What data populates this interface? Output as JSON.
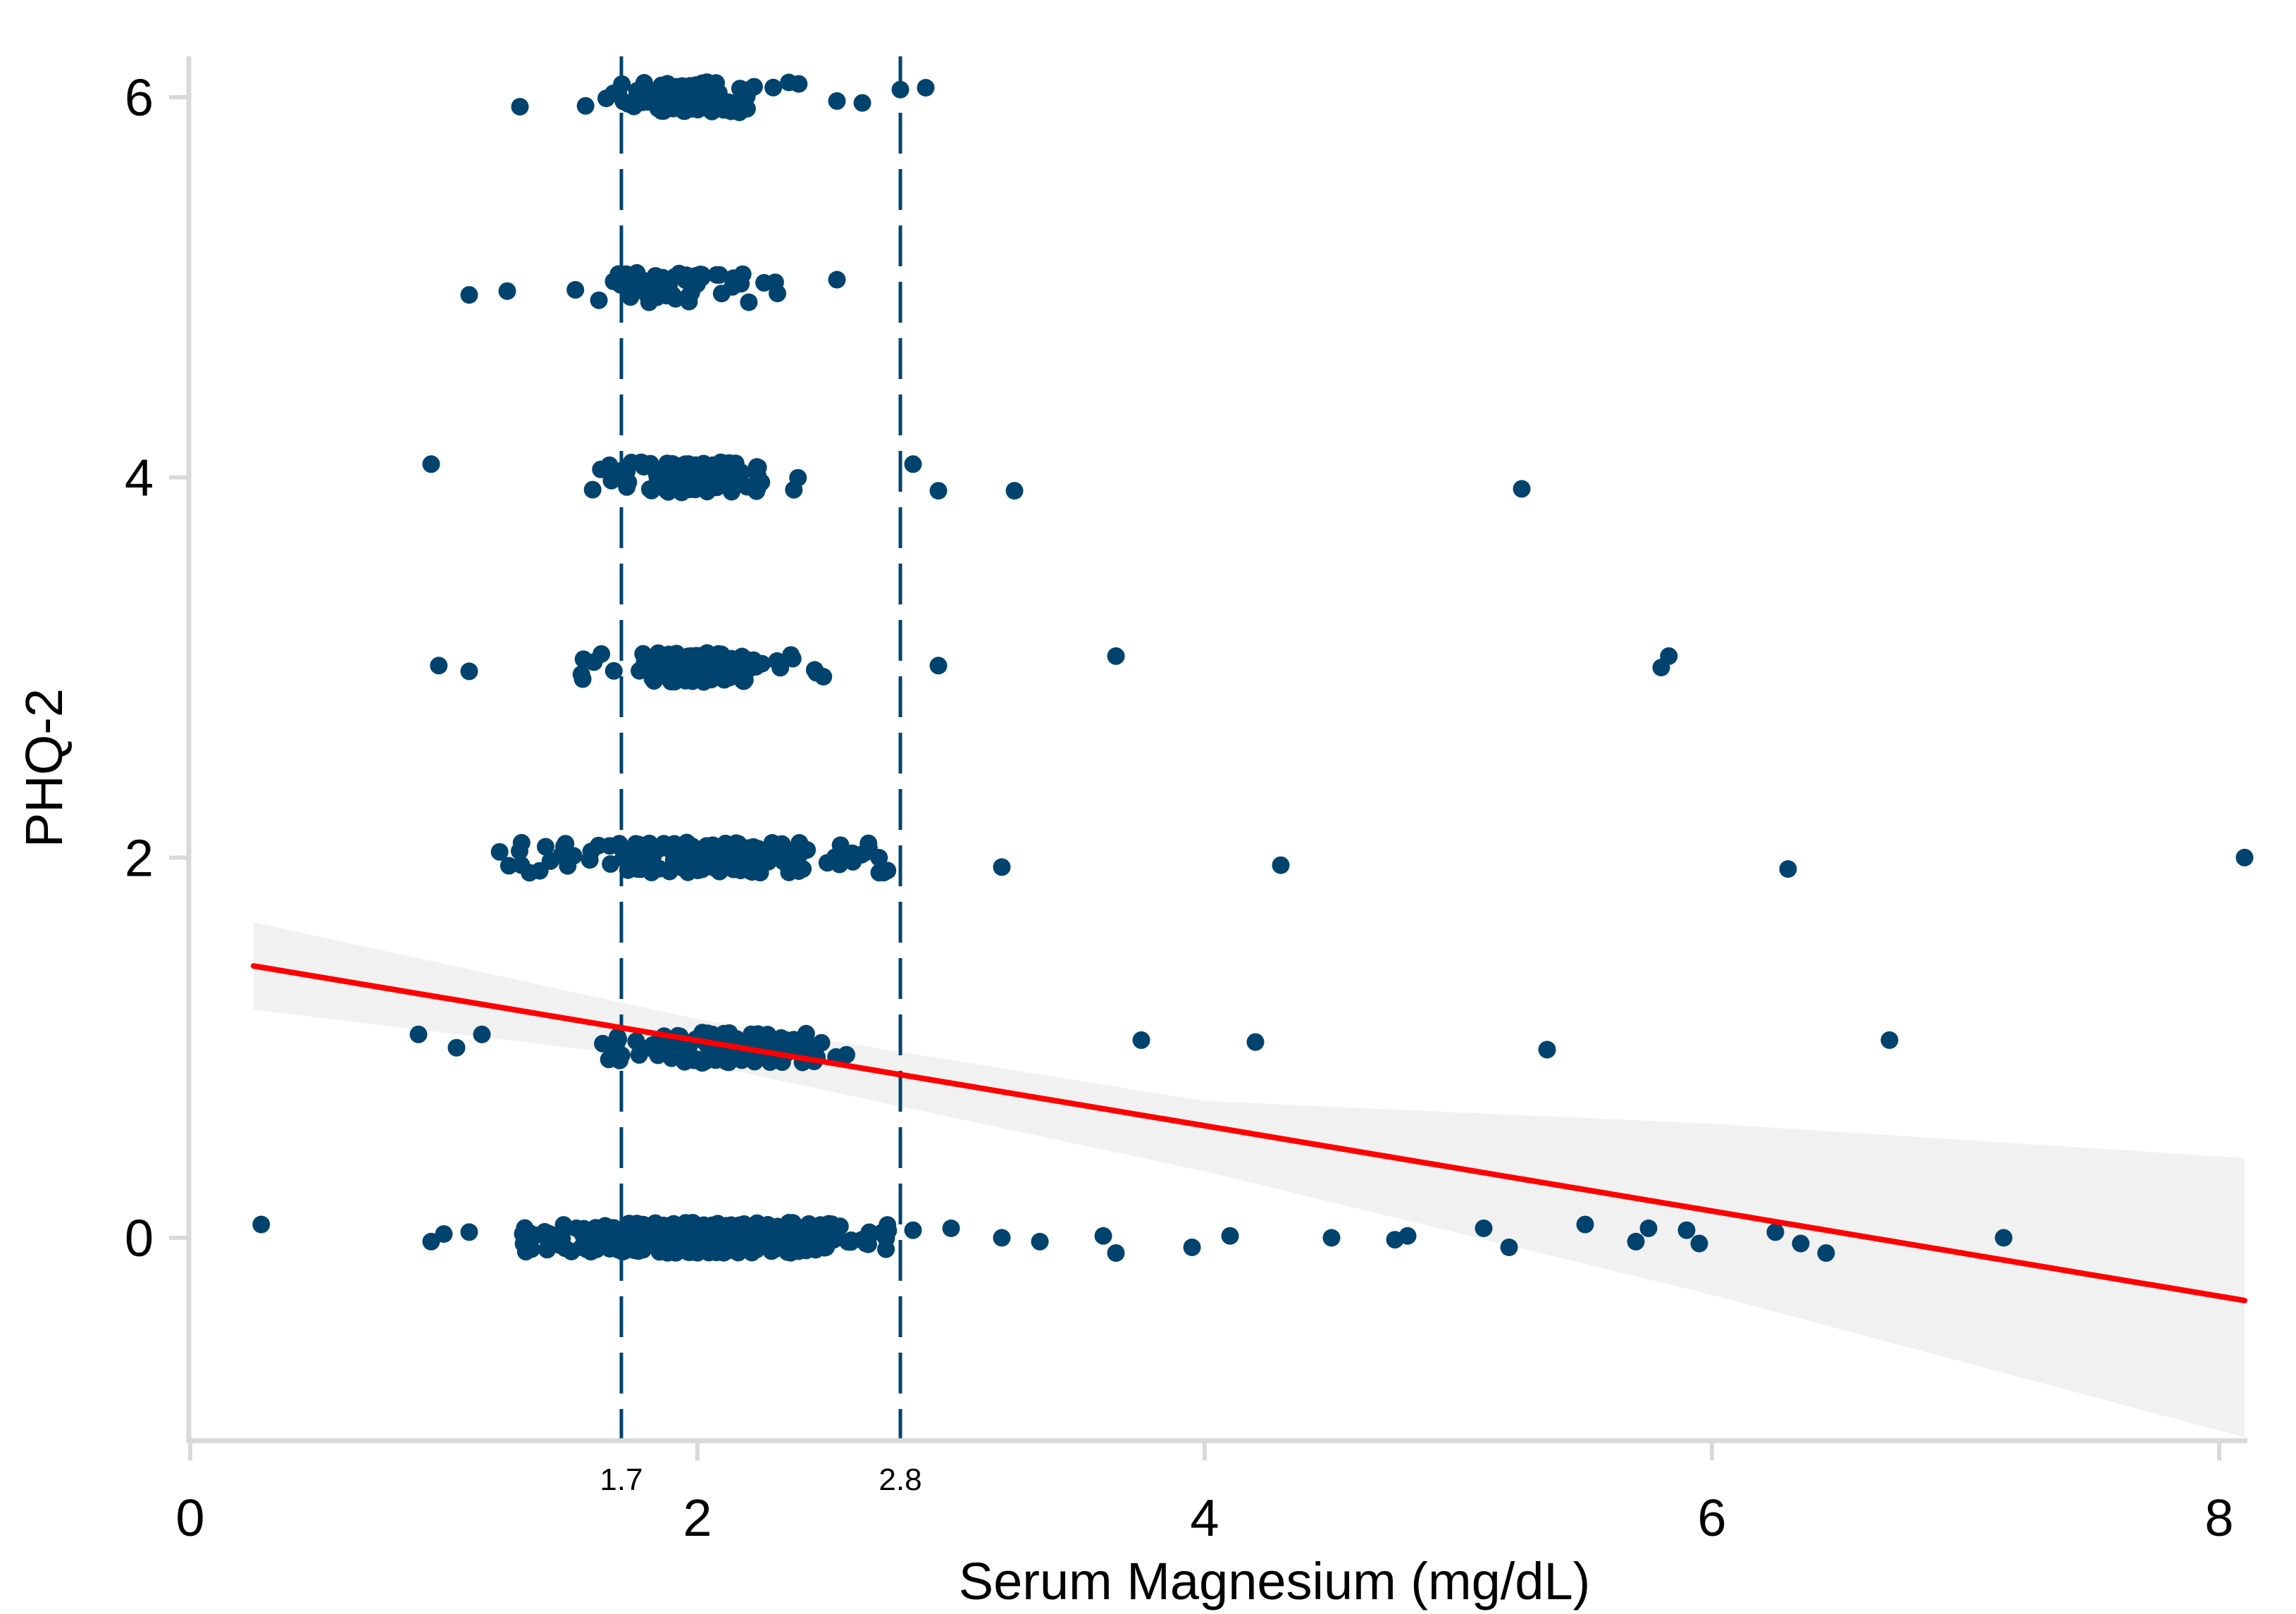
{
  "chart_data": {
    "type": "scatter",
    "xlabel": "Serum Magnesium (mg/dL)",
    "ylabel": "PHQ-2",
    "xlim": [
      0,
      8.1
    ],
    "ylim": [
      -1.1,
      6.2
    ],
    "xticks": [
      0,
      2,
      4,
      6,
      8
    ],
    "yticks": [
      0,
      2,
      4,
      6
    ],
    "grid": false,
    "reference_lines": [
      {
        "x": 1.7,
        "label": "1.7",
        "style": "dashed"
      },
      {
        "x": 2.8,
        "label": "2.8",
        "style": "dashed"
      }
    ],
    "fit_line": {
      "x0": 0.25,
      "y0": 1.43,
      "x1": 8.1,
      "y1": -0.33
    },
    "ci_band": {
      "x": [
        0.25,
        2,
        4,
        6,
        8.1
      ],
      "lower": [
        1.2,
        0.92,
        0.35,
        -0.3,
        -1.05
      ],
      "upper": [
        1.66,
        1.15,
        0.72,
        0.6,
        0.42
      ]
    },
    "dense_clusters": [
      {
        "y": 0,
        "x_start": 1.3,
        "x_end": 2.8,
        "density": 380
      },
      {
        "y": 1,
        "x_start": 1.6,
        "x_end": 2.6,
        "density": 110
      },
      {
        "y": 2,
        "x_start": 1.25,
        "x_end": 2.75,
        "density": 170
      },
      {
        "y": 3,
        "x_start": 1.5,
        "x_end": 2.5,
        "density": 110
      },
      {
        "y": 4,
        "x_start": 1.55,
        "x_end": 2.4,
        "density": 110
      },
      {
        "y": 5,
        "x_start": 1.5,
        "x_end": 2.35,
        "density": 60
      },
      {
        "y": 6,
        "x_start": 1.55,
        "x_end": 2.4,
        "density": 95
      }
    ],
    "outliers": [
      [
        0.28,
        0.07
      ],
      [
        0.95,
        -0.02
      ],
      [
        1.0,
        0.02
      ],
      [
        1.1,
        0.03
      ],
      [
        2.85,
        0.04
      ],
      [
        3.0,
        0.05
      ],
      [
        3.2,
        0.0
      ],
      [
        3.35,
        -0.02
      ],
      [
        3.6,
        0.01
      ],
      [
        3.65,
        -0.08
      ],
      [
        3.95,
        -0.05
      ],
      [
        4.1,
        0.01
      ],
      [
        4.5,
        0.0
      ],
      [
        4.75,
        -0.01
      ],
      [
        4.8,
        0.01
      ],
      [
        5.1,
        0.05
      ],
      [
        5.2,
        -0.05
      ],
      [
        5.5,
        0.07
      ],
      [
        5.7,
        -0.02
      ],
      [
        5.75,
        0.05
      ],
      [
        5.9,
        0.04
      ],
      [
        5.95,
        -0.03
      ],
      [
        6.25,
        0.03
      ],
      [
        6.35,
        -0.03
      ],
      [
        6.45,
        -0.08
      ],
      [
        7.15,
        0.0
      ],
      [
        0.9,
        1.07
      ],
      [
        1.05,
        1.0
      ],
      [
        1.15,
        1.07
      ],
      [
        3.75,
        1.04
      ],
      [
        4.2,
        1.03
      ],
      [
        5.35,
        0.99
      ],
      [
        6.7,
        1.04
      ],
      [
        1.22,
        2.03
      ],
      [
        3.2,
        1.95
      ],
      [
        4.3,
        1.96
      ],
      [
        6.3,
        1.94
      ],
      [
        8.1,
        2.0
      ],
      [
        0.98,
        3.01
      ],
      [
        1.1,
        2.98
      ],
      [
        2.95,
        3.01
      ],
      [
        3.65,
        3.06
      ],
      [
        5.8,
        3.0
      ],
      [
        5.83,
        3.06
      ],
      [
        0.95,
        4.07
      ],
      [
        2.85,
        4.07
      ],
      [
        2.95,
        3.93
      ],
      [
        3.25,
        3.93
      ],
      [
        5.25,
        3.94
      ],
      [
        1.1,
        4.96
      ],
      [
        1.25,
        4.98
      ],
      [
        2.55,
        5.04
      ],
      [
        1.3,
        5.95
      ],
      [
        2.55,
        5.98
      ],
      [
        2.65,
        5.97
      ],
      [
        2.8,
        6.04
      ],
      [
        2.9,
        6.05
      ]
    ]
  }
}
